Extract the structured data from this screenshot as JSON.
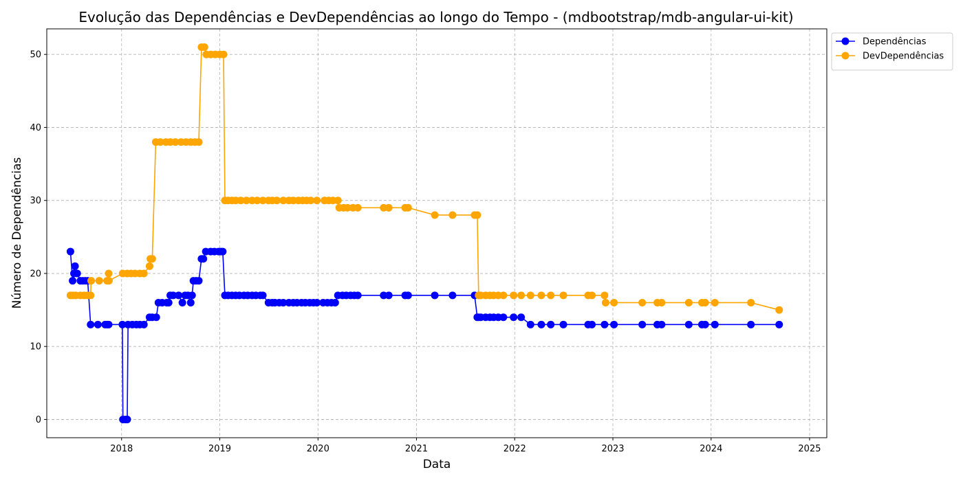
{
  "chart_data": {
    "type": "line",
    "title": "Evolução das Dependências e DevDependências ao longo do Tempo - (mdbootstrap/mdb-angular-ui-kit)",
    "xlabel": "Data",
    "ylabel": "Número de Dependências",
    "xlim": [
      "2017-03-29",
      "2025-03-06"
    ],
    "ylim": [
      -2.5,
      53.5
    ],
    "x_ticks": [
      "2018",
      "2019",
      "2020",
      "2021",
      "2022",
      "2023",
      "2024",
      "2025"
    ],
    "y_ticks": [
      0,
      10,
      20,
      30,
      40,
      50
    ],
    "grid": true,
    "legend_position": "outside top-right",
    "series": [
      {
        "name": "Dependências",
        "color": "#0000ff",
        "points": [
          [
            "2017-06-25",
            23
          ],
          [
            "2017-07-03",
            19
          ],
          [
            "2017-07-08",
            20
          ],
          [
            "2017-07-12",
            21
          ],
          [
            "2017-07-20",
            20
          ],
          [
            "2017-08-01",
            19
          ],
          [
            "2017-08-10",
            19
          ],
          [
            "2017-08-20",
            19
          ],
          [
            "2017-08-28",
            19
          ],
          [
            "2017-09-08",
            13
          ],
          [
            "2017-10-05",
            13
          ],
          [
            "2017-11-01",
            13
          ],
          [
            "2017-11-08",
            13
          ],
          [
            "2017-11-14",
            13
          ],
          [
            "2018-01-04",
            13
          ],
          [
            "2018-01-06",
            0
          ],
          [
            "2018-01-15",
            0
          ],
          [
            "2018-01-22",
            0
          ],
          [
            "2018-01-25",
            13
          ],
          [
            "2018-02-10",
            13
          ],
          [
            "2018-02-25",
            13
          ],
          [
            "2018-03-10",
            13
          ],
          [
            "2018-03-25",
            13
          ],
          [
            "2018-04-15",
            14
          ],
          [
            "2018-04-25",
            14
          ],
          [
            "2018-05-10",
            14
          ],
          [
            "2018-05-18",
            16
          ],
          [
            "2018-06-01",
            16
          ],
          [
            "2018-06-18",
            16
          ],
          [
            "2018-06-25",
            16
          ],
          [
            "2018-07-01",
            17
          ],
          [
            "2018-07-12",
            17
          ],
          [
            "2018-08-01",
            17
          ],
          [
            "2018-08-15",
            16
          ],
          [
            "2018-08-25",
            17
          ],
          [
            "2018-09-05",
            17
          ],
          [
            "2018-09-15",
            16
          ],
          [
            "2018-09-20",
            17
          ],
          [
            "2018-09-25",
            19
          ],
          [
            "2018-10-05",
            19
          ],
          [
            "2018-10-15",
            19
          ],
          [
            "2018-10-25",
            22
          ],
          [
            "2018-11-01",
            22
          ],
          [
            "2018-11-10",
            23
          ],
          [
            "2018-11-28",
            23
          ],
          [
            "2018-12-12",
            23
          ],
          [
            "2018-12-28",
            23
          ],
          [
            "2019-01-05",
            23
          ],
          [
            "2019-01-12",
            23
          ],
          [
            "2019-01-20",
            17
          ],
          [
            "2019-02-01",
            17
          ],
          [
            "2019-02-15",
            17
          ],
          [
            "2019-03-01",
            17
          ],
          [
            "2019-03-15",
            17
          ],
          [
            "2019-04-01",
            17
          ],
          [
            "2019-04-15",
            17
          ],
          [
            "2019-05-01",
            17
          ],
          [
            "2019-05-15",
            17
          ],
          [
            "2019-06-01",
            17
          ],
          [
            "2019-06-10",
            17
          ],
          [
            "2019-07-01",
            16
          ],
          [
            "2019-07-15",
            16
          ],
          [
            "2019-07-25",
            16
          ],
          [
            "2019-08-10",
            16
          ],
          [
            "2019-08-25",
            16
          ],
          [
            "2019-09-15",
            16
          ],
          [
            "2019-10-01",
            16
          ],
          [
            "2019-10-15",
            16
          ],
          [
            "2019-11-01",
            16
          ],
          [
            "2019-11-15",
            16
          ],
          [
            "2019-12-01",
            16
          ],
          [
            "2019-12-15",
            16
          ],
          [
            "2019-12-28",
            16
          ],
          [
            "2020-01-20",
            16
          ],
          [
            "2020-02-05",
            16
          ],
          [
            "2020-02-20",
            16
          ],
          [
            "2020-03-05",
            16
          ],
          [
            "2020-03-15",
            17
          ],
          [
            "2020-04-01",
            17
          ],
          [
            "2020-04-15",
            17
          ],
          [
            "2020-05-01",
            17
          ],
          [
            "2020-05-15",
            17
          ],
          [
            "2020-05-28",
            17
          ],
          [
            "2020-09-01",
            17
          ],
          [
            "2020-09-20",
            17
          ],
          [
            "2020-11-20",
            17
          ],
          [
            "2020-12-01",
            17
          ],
          [
            "2021-03-10",
            17
          ],
          [
            "2021-05-15",
            17
          ],
          [
            "2021-08-05",
            17
          ],
          [
            "2021-08-15",
            14
          ],
          [
            "2021-08-20",
            14
          ],
          [
            "2021-08-28",
            14
          ],
          [
            "2021-09-15",
            14
          ],
          [
            "2021-10-01",
            14
          ],
          [
            "2021-10-15",
            14
          ],
          [
            "2021-11-01",
            14
          ],
          [
            "2021-11-20",
            14
          ],
          [
            "2021-12-28",
            14
          ],
          [
            "2022-01-25",
            14
          ],
          [
            "2022-03-01",
            13
          ],
          [
            "2022-04-10",
            13
          ],
          [
            "2022-05-15",
            13
          ],
          [
            "2022-07-01",
            13
          ],
          [
            "2022-10-01",
            13
          ],
          [
            "2022-10-15",
            13
          ],
          [
            "2022-12-01",
            13
          ],
          [
            "2023-01-05",
            13
          ],
          [
            "2023-04-20",
            13
          ],
          [
            "2023-06-15",
            13
          ],
          [
            "2023-07-01",
            13
          ],
          [
            "2023-10-10",
            13
          ],
          [
            "2023-11-28",
            13
          ],
          [
            "2023-12-10",
            13
          ],
          [
            "2024-01-15",
            13
          ],
          [
            "2024-05-28",
            13
          ],
          [
            "2024-09-10",
            13
          ]
        ]
      },
      {
        "name": "DevDependências",
        "color": "#ffa500",
        "points": [
          [
            "2017-06-25",
            17
          ],
          [
            "2017-07-05",
            17
          ],
          [
            "2017-07-15",
            17
          ],
          [
            "2017-08-01",
            17
          ],
          [
            "2017-08-15",
            17
          ],
          [
            "2017-08-28",
            17
          ],
          [
            "2017-09-08",
            17
          ],
          [
            "2017-09-10",
            19
          ],
          [
            "2017-10-10",
            19
          ],
          [
            "2017-11-08",
            19
          ],
          [
            "2017-11-14",
            20
          ],
          [
            "2017-11-15",
            19
          ],
          [
            "2018-01-05",
            20
          ],
          [
            "2018-01-22",
            20
          ],
          [
            "2018-02-05",
            20
          ],
          [
            "2018-02-20",
            20
          ],
          [
            "2018-03-10",
            20
          ],
          [
            "2018-03-25",
            20
          ],
          [
            "2018-04-15",
            21
          ],
          [
            "2018-04-18",
            22
          ],
          [
            "2018-04-25",
            22
          ],
          [
            "2018-05-08",
            38
          ],
          [
            "2018-05-25",
            38
          ],
          [
            "2018-06-15",
            38
          ],
          [
            "2018-07-01",
            38
          ],
          [
            "2018-07-20",
            38
          ],
          [
            "2018-08-10",
            38
          ],
          [
            "2018-08-28",
            38
          ],
          [
            "2018-09-15",
            38
          ],
          [
            "2018-10-01",
            38
          ],
          [
            "2018-10-15",
            38
          ],
          [
            "2018-10-25",
            51
          ],
          [
            "2018-11-05",
            51
          ],
          [
            "2018-11-12",
            50
          ],
          [
            "2018-11-28",
            50
          ],
          [
            "2018-12-15",
            50
          ],
          [
            "2019-01-01",
            50
          ],
          [
            "2019-01-15",
            50
          ],
          [
            "2019-01-20",
            30
          ],
          [
            "2019-02-01",
            30
          ],
          [
            "2019-02-15",
            30
          ],
          [
            "2019-03-01",
            30
          ],
          [
            "2019-03-20",
            30
          ],
          [
            "2019-04-10",
            30
          ],
          [
            "2019-05-01",
            30
          ],
          [
            "2019-05-20",
            30
          ],
          [
            "2019-06-10",
            30
          ],
          [
            "2019-07-01",
            30
          ],
          [
            "2019-07-15",
            30
          ],
          [
            "2019-08-01",
            30
          ],
          [
            "2019-08-25",
            30
          ],
          [
            "2019-09-15",
            30
          ],
          [
            "2019-10-01",
            30
          ],
          [
            "2019-10-20",
            30
          ],
          [
            "2019-11-05",
            30
          ],
          [
            "2019-11-20",
            30
          ],
          [
            "2019-12-05",
            30
          ],
          [
            "2019-12-28",
            30
          ],
          [
            "2020-01-25",
            30
          ],
          [
            "2020-02-10",
            30
          ],
          [
            "2020-02-25",
            30
          ],
          [
            "2020-03-15",
            30
          ],
          [
            "2020-03-20",
            29
          ],
          [
            "2020-04-05",
            29
          ],
          [
            "2020-04-20",
            29
          ],
          [
            "2020-05-10",
            29
          ],
          [
            "2020-05-28",
            29
          ],
          [
            "2020-09-01",
            29
          ],
          [
            "2020-09-20",
            29
          ],
          [
            "2020-11-20",
            29
          ],
          [
            "2020-12-01",
            29
          ],
          [
            "2021-03-10",
            28
          ],
          [
            "2021-05-15",
            28
          ],
          [
            "2021-08-05",
            28
          ],
          [
            "2021-08-15",
            28
          ],
          [
            "2021-08-20",
            17
          ],
          [
            "2021-08-28",
            17
          ],
          [
            "2021-09-15",
            17
          ],
          [
            "2021-10-01",
            17
          ],
          [
            "2021-10-15",
            17
          ],
          [
            "2021-11-01",
            17
          ],
          [
            "2021-11-20",
            17
          ],
          [
            "2021-12-28",
            17
          ],
          [
            "2022-01-25",
            17
          ],
          [
            "2022-03-01",
            17
          ],
          [
            "2022-04-10",
            17
          ],
          [
            "2022-05-15",
            17
          ],
          [
            "2022-07-01",
            17
          ],
          [
            "2022-10-01",
            17
          ],
          [
            "2022-10-15",
            17
          ],
          [
            "2022-12-01",
            17
          ],
          [
            "2022-12-05",
            16
          ],
          [
            "2023-01-05",
            16
          ],
          [
            "2023-04-20",
            16
          ],
          [
            "2023-06-15",
            16
          ],
          [
            "2023-07-01",
            16
          ],
          [
            "2023-10-10",
            16
          ],
          [
            "2023-11-28",
            16
          ],
          [
            "2023-12-10",
            16
          ],
          [
            "2024-01-15",
            16
          ],
          [
            "2024-05-28",
            16
          ],
          [
            "2024-09-10",
            15
          ]
        ]
      }
    ]
  }
}
